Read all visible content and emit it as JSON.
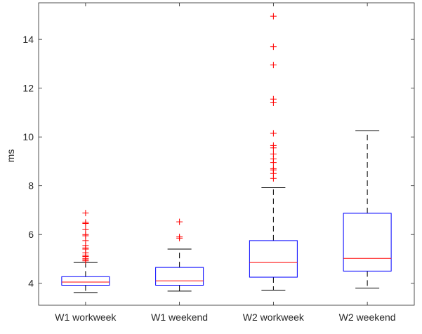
{
  "chart_data": {
    "type": "boxplot",
    "title": "",
    "xlabel": "",
    "ylabel": "ms",
    "ylim": [
      3.1,
      15.5
    ],
    "yticks": [
      4,
      6,
      8,
      10,
      12,
      14
    ],
    "grid": false,
    "legend": "none",
    "categories": [
      "W1 workweek",
      "W1 weekend",
      "W2 workweek",
      "W2 weekend"
    ],
    "boxes": [
      {
        "category": "W1 workweek",
        "min": 3.62,
        "q1": 3.92,
        "median": 4.05,
        "q3": 4.27,
        "max": 4.85,
        "outliers": [
          4.92,
          4.97,
          5.02,
          5.1,
          5.15,
          5.25,
          5.4,
          5.45,
          5.55,
          5.75,
          5.95,
          6.0,
          6.2,
          6.45,
          6.5,
          6.88
        ]
      },
      {
        "category": "W1 weekend",
        "min": 3.68,
        "q1": 3.92,
        "median": 4.1,
        "q3": 4.65,
        "max": 5.4,
        "outliers": [
          5.85,
          5.9,
          6.52
        ]
      },
      {
        "category": "W2 workweek",
        "min": 3.72,
        "q1": 4.25,
        "median": 4.85,
        "q3": 5.75,
        "max": 7.92,
        "outliers": [
          8.3,
          8.5,
          8.65,
          8.7,
          8.95,
          9.1,
          9.3,
          9.55,
          9.65,
          10.15,
          11.4,
          11.55,
          12.95,
          13.7,
          14.95
        ]
      },
      {
        "category": "W2 weekend",
        "min": 3.8,
        "q1": 4.5,
        "median": 5.02,
        "q3": 6.87,
        "max": 10.25,
        "outliers": []
      }
    ],
    "colors": {
      "box": "#0000ff",
      "median": "#ff0000",
      "whisker": "#000000",
      "outlier": "#ff0000",
      "axis": "#262626"
    }
  }
}
